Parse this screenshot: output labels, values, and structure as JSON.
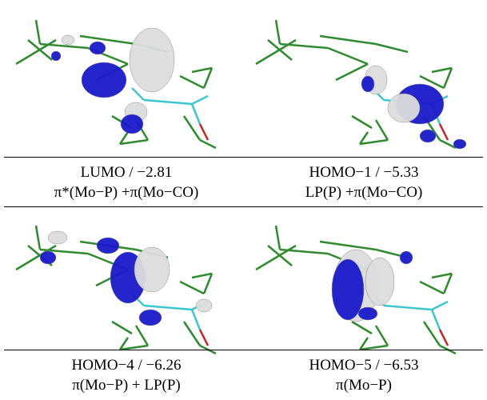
{
  "panels": [
    {
      "title": "LUMO / −2.81",
      "character": "π*(Mo−P) +π(Mo−CO)"
    },
    {
      "title": "HOMO−1 / −5.33",
      "character": "LP(P) +π(Mo−CO)"
    },
    {
      "title": "HOMO−4 / −6.26",
      "character": "π(Mo−P) + LP(P)"
    },
    {
      "title": "HOMO−5 / −6.53",
      "character": "π(Mo−P)"
    }
  ]
}
